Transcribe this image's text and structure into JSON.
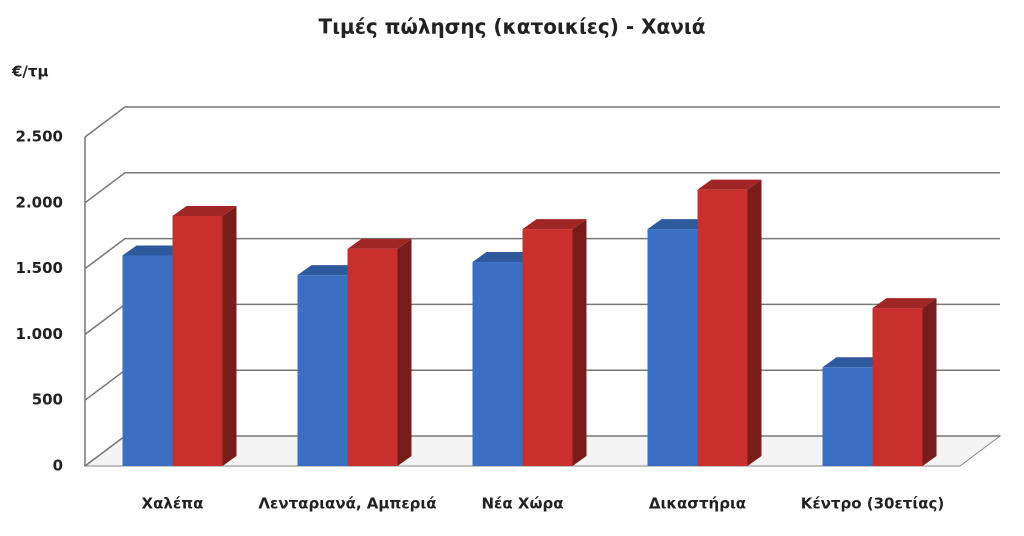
{
  "chart_data": {
    "type": "bar3d",
    "title": "Τιμές πώλησης (κατοικίες) - Χανιά",
    "y_label": "€/τμ",
    "categories": [
      "Χαλέπα",
      "Λενταριανά, Αμπεριά",
      "Νέα Χώρα",
      "Δικαστήρια",
      "Κέντρο (30ετίας)"
    ],
    "series": [
      {
        "color": "#3a6fc4",
        "values": [
          1600,
          1450,
          1550,
          1800,
          750
        ]
      },
      {
        "color": "#c8302e",
        "values": [
          1900,
          1650,
          1800,
          2100,
          1200
        ]
      }
    ],
    "ylim": [
      0,
      2500
    ],
    "yticks": [
      0,
      500,
      {
        "value": 1000,
        "label": "1.000"
      },
      {
        "value": 1500,
        "label": "1.500"
      },
      {
        "value": 2000,
        "label": "2.000"
      },
      {
        "value": 2500,
        "label": "2.500"
      }
    ],
    "grid": true
  }
}
